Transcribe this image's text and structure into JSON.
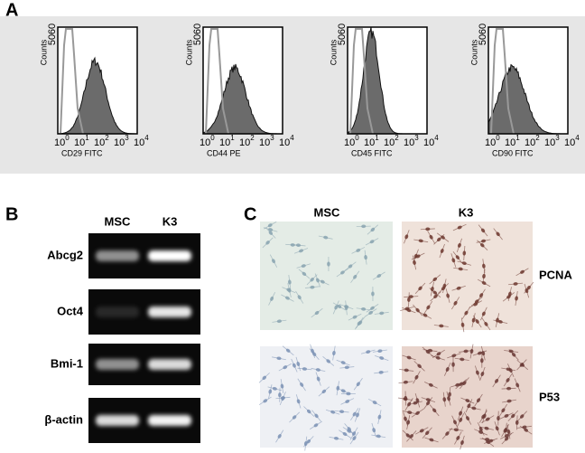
{
  "panel_a": {
    "letter": "A",
    "y_label": "Counts",
    "y_ticks": [
      "50",
      "60"
    ],
    "x_tick_base": "10",
    "x_tick_exponents": [
      "0",
      "1",
      "2",
      "3",
      "4"
    ],
    "plots": [
      {
        "x_label": "CD29 FITC"
      },
      {
        "x_label": "CD44 PE"
      },
      {
        "x_label": "CD45 FITC"
      },
      {
        "x_label": "CD90 FITC"
      }
    ]
  },
  "panel_b": {
    "letter": "B",
    "columns": [
      "MSC",
      "K3"
    ],
    "rows": [
      "Abcg2",
      "Oct4",
      "Bmi-1",
      "β-actin"
    ]
  },
  "panel_c": {
    "letter": "C",
    "columns": [
      "MSC",
      "K3"
    ],
    "rows": [
      "PCNA",
      "P53"
    ]
  }
}
